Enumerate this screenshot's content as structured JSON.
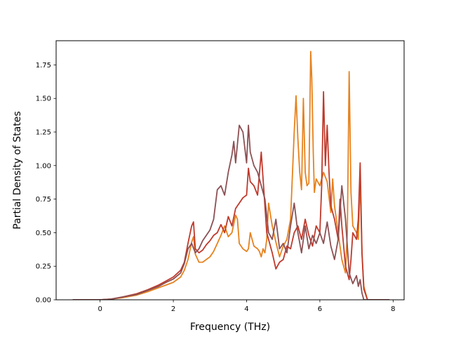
{
  "chart_data": {
    "type": "line",
    "title": "",
    "xlabel": "Frequency (THz)",
    "ylabel": "Partial Density of States",
    "xlim": [
      -1.2,
      8.3
    ],
    "ylim": [
      0,
      1.93
    ],
    "xticks": [
      0,
      2,
      4,
      6,
      8
    ],
    "yticks": [
      0.0,
      0.25,
      0.5,
      0.75,
      1.0,
      1.25,
      1.5,
      1.75
    ],
    "xtick_labels": [
      "0",
      "2",
      "4",
      "6",
      "8"
    ],
    "ytick_labels": [
      "0.00",
      "0.25",
      "0.50",
      "0.75",
      "1.00",
      "1.25",
      "1.50",
      "1.75"
    ],
    "grid": false,
    "legend": null,
    "series": [
      {
        "color": "#e6821e",
        "x": [
          -0.75,
          0,
          0.3,
          0.6,
          1.0,
          1.3,
          1.6,
          1.8,
          2.0,
          2.2,
          2.3,
          2.4,
          2.5,
          2.55,
          2.6,
          2.7,
          2.8,
          2.9,
          3.0,
          3.1,
          3.2,
          3.3,
          3.4,
          3.5,
          3.6,
          3.7,
          3.75,
          3.8,
          3.9,
          4.0,
          4.05,
          4.1,
          4.2,
          4.3,
          4.35,
          4.4,
          4.45,
          4.5,
          4.55,
          4.6,
          4.7,
          4.8,
          4.9,
          5.0,
          5.1,
          5.2,
          5.3,
          5.35,
          5.4,
          5.45,
          5.5,
          5.55,
          5.6,
          5.65,
          5.7,
          5.75,
          5.78,
          5.82,
          5.85,
          5.9,
          6.0,
          6.1,
          6.2,
          6.3,
          6.35,
          6.4,
          6.5,
          6.6,
          6.7,
          6.75,
          6.8,
          6.85,
          6.9,
          7.0,
          7.05,
          7.1,
          7.15,
          7.2,
          7.3,
          7.9
        ],
        "y": [
          0,
          0,
          0.005,
          0.015,
          0.035,
          0.06,
          0.09,
          0.11,
          0.13,
          0.17,
          0.22,
          0.3,
          0.43,
          0.47,
          0.34,
          0.28,
          0.28,
          0.3,
          0.32,
          0.36,
          0.42,
          0.48,
          0.55,
          0.47,
          0.5,
          0.63,
          0.6,
          0.42,
          0.38,
          0.36,
          0.38,
          0.5,
          0.4,
          0.38,
          0.36,
          0.32,
          0.38,
          0.35,
          0.45,
          0.72,
          0.55,
          0.43,
          0.32,
          0.4,
          0.45,
          0.6,
          1.25,
          1.52,
          1.2,
          0.95,
          0.82,
          1.5,
          0.95,
          0.85,
          0.87,
          1.85,
          1.65,
          1.1,
          0.8,
          0.9,
          0.85,
          0.95,
          0.88,
          0.65,
          0.9,
          0.7,
          0.5,
          0.3,
          0.2,
          0.5,
          1.7,
          0.8,
          0.55,
          0.5,
          0.45,
          0.9,
          0.35,
          0.1,
          0,
          0
        ]
      },
      {
        "color": "#c0392b",
        "x": [
          -0.75,
          0,
          0.3,
          0.6,
          1.0,
          1.3,
          1.6,
          1.8,
          2.0,
          2.2,
          2.3,
          2.4,
          2.5,
          2.55,
          2.6,
          2.7,
          2.8,
          2.9,
          3.0,
          3.1,
          3.2,
          3.3,
          3.4,
          3.5,
          3.6,
          3.7,
          3.75,
          3.8,
          3.9,
          4.0,
          4.05,
          4.1,
          4.2,
          4.3,
          4.4,
          4.45,
          4.5,
          4.55,
          4.6,
          4.7,
          4.8,
          4.9,
          5.0,
          5.1,
          5.2,
          5.3,
          5.4,
          5.5,
          5.6,
          5.7,
          5.8,
          5.9,
          6.0,
          6.05,
          6.1,
          6.15,
          6.2,
          6.25,
          6.3,
          6.4,
          6.5,
          6.55,
          6.6,
          6.7,
          6.8,
          6.85,
          6.9,
          7.0,
          7.05,
          7.1,
          7.15,
          7.2,
          7.3,
          7.9
        ],
        "y": [
          0,
          0,
          0.005,
          0.02,
          0.045,
          0.075,
          0.11,
          0.14,
          0.17,
          0.22,
          0.28,
          0.42,
          0.55,
          0.58,
          0.38,
          0.35,
          0.37,
          0.41,
          0.44,
          0.48,
          0.5,
          0.56,
          0.5,
          0.62,
          0.55,
          0.68,
          0.7,
          0.72,
          0.76,
          0.78,
          0.98,
          0.88,
          0.85,
          0.78,
          1.1,
          0.9,
          0.7,
          0.5,
          0.45,
          0.35,
          0.23,
          0.28,
          0.3,
          0.4,
          0.38,
          0.5,
          0.55,
          0.45,
          0.6,
          0.48,
          0.4,
          0.55,
          0.5,
          0.85,
          1.55,
          1.0,
          1.3,
          0.95,
          0.7,
          0.6,
          0.45,
          0.75,
          0.55,
          0.25,
          0.15,
          0.3,
          0.5,
          0.45,
          0.6,
          1.02,
          0.35,
          0.08,
          0,
          0
        ]
      },
      {
        "color": "#8c5054",
        "x": [
          -0.75,
          0,
          0.3,
          0.6,
          1.0,
          1.3,
          1.6,
          1.8,
          2.0,
          2.2,
          2.3,
          2.4,
          2.5,
          2.6,
          2.7,
          2.8,
          2.9,
          3.0,
          3.1,
          3.2,
          3.3,
          3.4,
          3.5,
          3.6,
          3.65,
          3.7,
          3.8,
          3.9,
          4.0,
          4.05,
          4.1,
          4.2,
          4.3,
          4.4,
          4.5,
          4.6,
          4.7,
          4.8,
          4.9,
          5.0,
          5.1,
          5.2,
          5.3,
          5.4,
          5.5,
          5.6,
          5.7,
          5.8,
          5.9,
          6.0,
          6.1,
          6.2,
          6.3,
          6.4,
          6.5,
          6.6,
          6.7,
          6.8,
          6.9,
          7.0,
          7.05,
          7.1,
          7.15,
          7.2,
          7.3,
          7.9
        ],
        "y": [
          0,
          0,
          0.005,
          0.02,
          0.04,
          0.07,
          0.1,
          0.13,
          0.155,
          0.2,
          0.27,
          0.38,
          0.42,
          0.35,
          0.38,
          0.44,
          0.48,
          0.52,
          0.6,
          0.82,
          0.85,
          0.78,
          0.95,
          1.08,
          1.18,
          1.02,
          1.3,
          1.25,
          1.02,
          1.3,
          1.1,
          1.0,
          0.95,
          0.85,
          0.75,
          0.5,
          0.45,
          0.6,
          0.38,
          0.42,
          0.35,
          0.55,
          0.72,
          0.5,
          0.35,
          0.55,
          0.38,
          0.48,
          0.42,
          0.5,
          0.42,
          0.58,
          0.4,
          0.3,
          0.45,
          0.85,
          0.6,
          0.2,
          0.12,
          0.18,
          0.1,
          0.15,
          0.05,
          0,
          0,
          0
        ]
      }
    ]
  }
}
